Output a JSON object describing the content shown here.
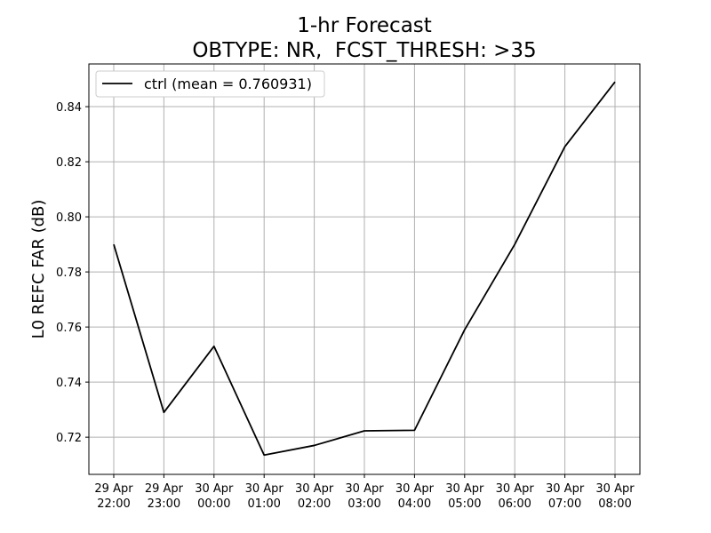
{
  "chart_data": {
    "type": "line",
    "title": "1-hr Forecast",
    "subtitle": "OBTYPE: NR,  FCST_THRESH: >35",
    "xlabel": "",
    "ylabel": "L0 REFC FAR (dB)",
    "x": [
      [
        "29 Apr",
        "22:00"
      ],
      [
        "29 Apr",
        "23:00"
      ],
      [
        "30 Apr",
        "00:00"
      ],
      [
        "30 Apr",
        "01:00"
      ],
      [
        "30 Apr",
        "02:00"
      ],
      [
        "30 Apr",
        "03:00"
      ],
      [
        "30 Apr",
        "04:00"
      ],
      [
        "30 Apr",
        "05:00"
      ],
      [
        "30 Apr",
        "06:00"
      ],
      [
        "30 Apr",
        "07:00"
      ],
      [
        "30 Apr",
        "08:00"
      ]
    ],
    "series": [
      {
        "name": "ctrl (mean = 0.760931)",
        "color": "#000000",
        "values": [
          0.79,
          0.729,
          0.753,
          0.7135,
          0.717,
          0.7223,
          0.7225,
          0.759,
          0.79,
          0.8255,
          0.849
        ]
      }
    ],
    "ylim": [
      0.7065,
      0.8555
    ],
    "yticks": [
      0.72,
      0.74,
      0.76,
      0.78,
      0.8,
      0.82,
      0.84
    ],
    "ytick_labels": [
      "0.72",
      "0.74",
      "0.76",
      "0.78",
      "0.80",
      "0.82",
      "0.84"
    ],
    "grid": true,
    "legend_position": "top-left"
  }
}
